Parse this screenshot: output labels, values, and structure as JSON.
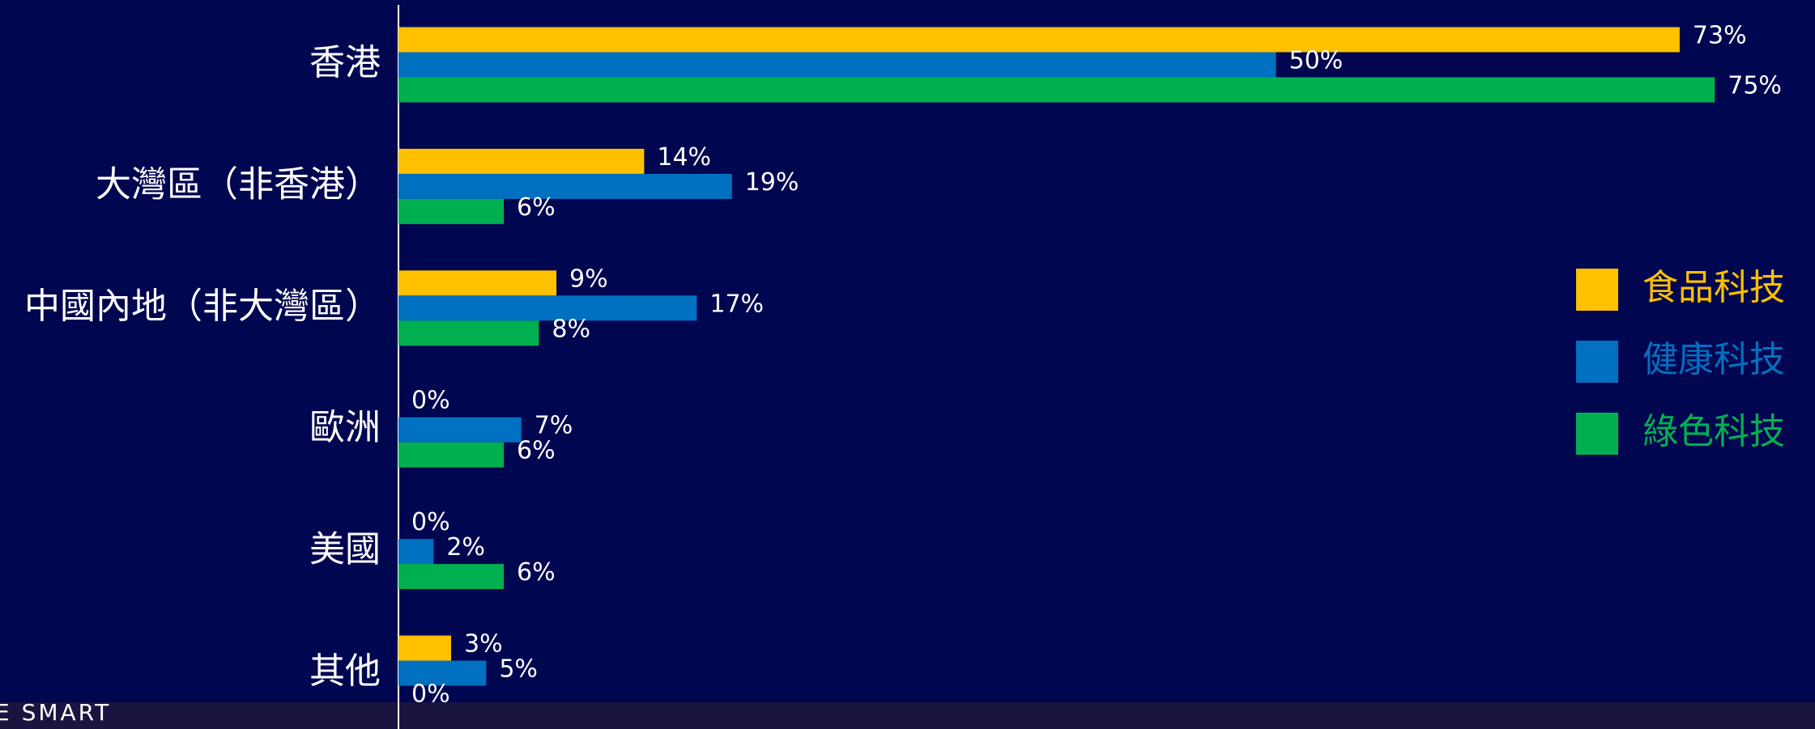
{
  "chart_data": {
    "type": "hbar",
    "categories": [
      "香港",
      "大灣區（非香港）",
      "中國內地（非大灣區）",
      "歐洲",
      "美國",
      "其他"
    ],
    "series": [
      {
        "name": "食品科技",
        "color": "#FFC000",
        "values": [
          73,
          14,
          9,
          0,
          0,
          3
        ],
        "value_labels": [
          "73%",
          "14%",
          "9%",
          "0%",
          "0%",
          "3%"
        ]
      },
      {
        "name": "健康科技",
        "color": "#0070C0",
        "values": [
          50,
          19,
          17,
          7,
          2,
          5
        ],
        "value_labels": [
          "50%",
          "19%",
          "17%",
          "7%",
          "2%",
          "5%"
        ]
      },
      {
        "name": "綠色科技",
        "color": "#00B050",
        "values": [
          75,
          6,
          8,
          6,
          6,
          0
        ],
        "value_labels": [
          "75%",
          "6%",
          "8%",
          "6%",
          "6%",
          "0%"
        ]
      }
    ],
    "legend": "right"
  },
  "footer_text": "E SMART"
}
